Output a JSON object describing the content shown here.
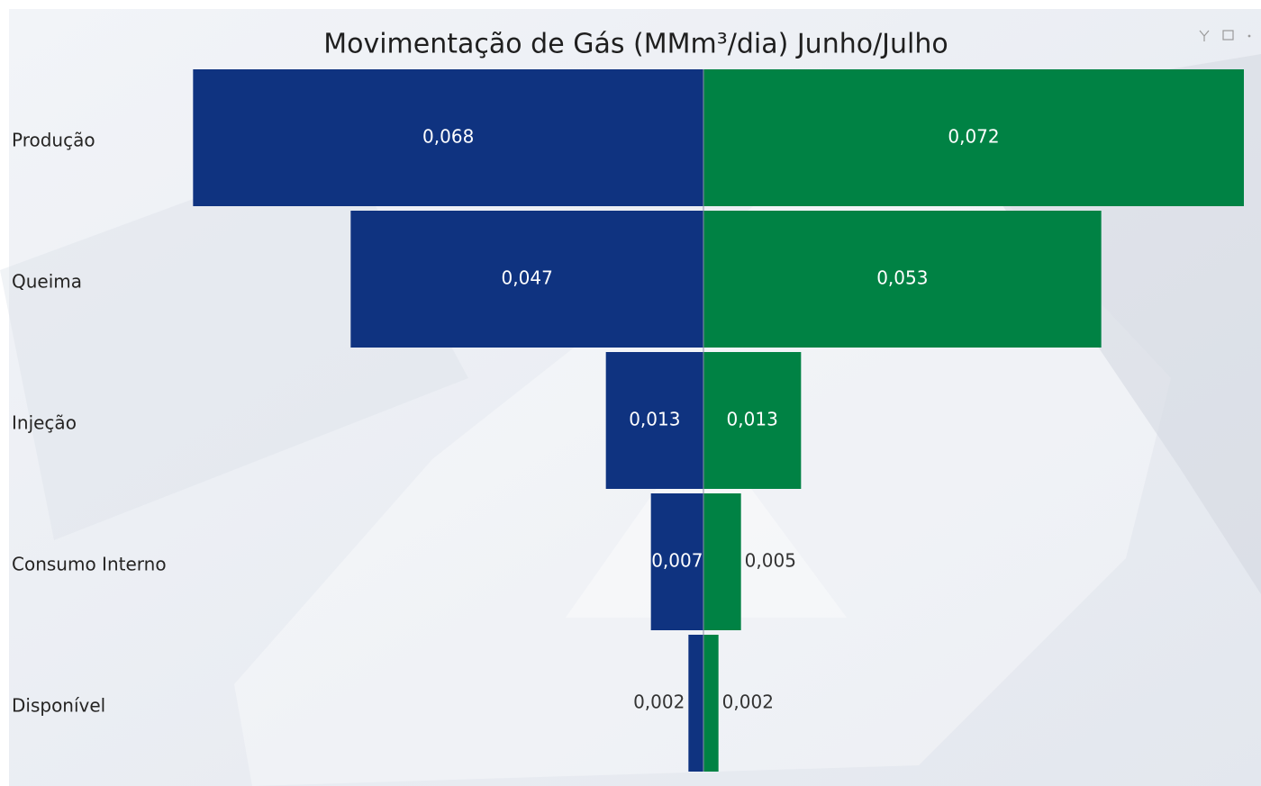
{
  "chart_data": {
    "type": "butterfly",
    "title": "Movimentação de Gás (MMm³/dia) Junho/Julho",
    "categories": [
      "Produção",
      "Queima",
      "Injeção",
      "Consumo Interno",
      "Disponível"
    ],
    "series": [
      {
        "color": "#0f3380",
        "values": [
          0.068,
          0.047,
          0.013,
          0.007,
          0.002
        ],
        "value_labels": [
          "0,068",
          "0,047",
          "0,013",
          "0,007",
          "0,002"
        ]
      },
      {
        "color": "#008244",
        "values": [
          0.072,
          0.053,
          0.013,
          0.005,
          0.002
        ],
        "value_labels": [
          "0,072",
          "0,053",
          "0,013",
          "0,005",
          "0,002"
        ]
      }
    ]
  }
}
